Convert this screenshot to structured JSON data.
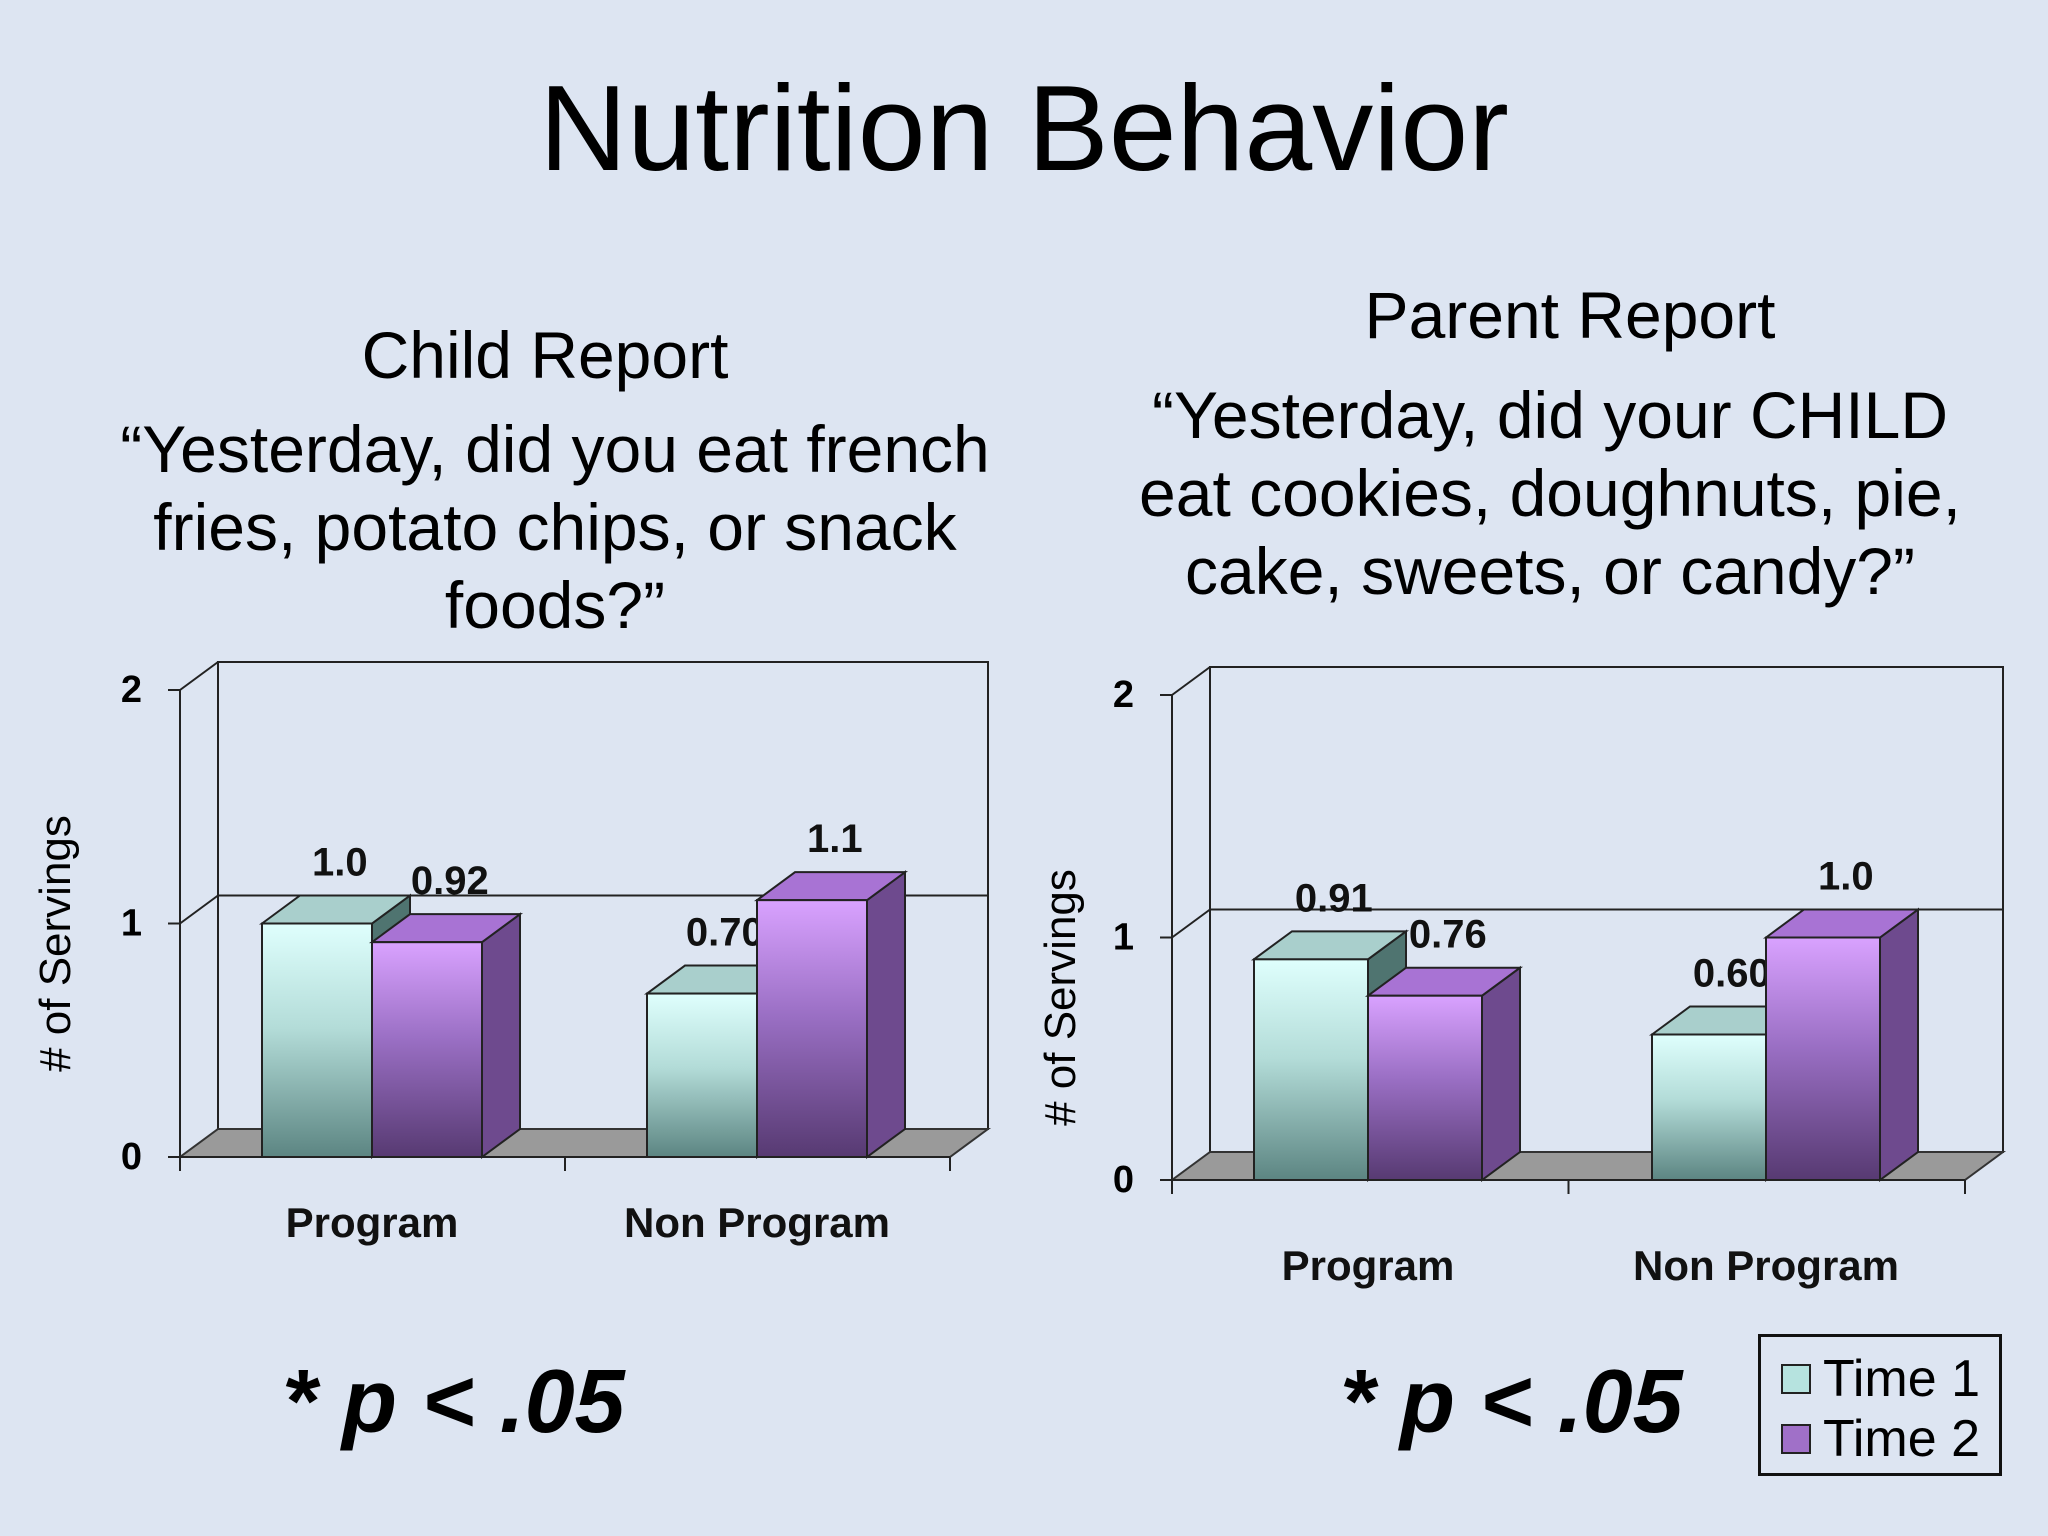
{
  "slide": {
    "title": "Nutrition Behavior",
    "p_value_label_left": "* p < .05",
    "p_value_label_right": "* p < .05"
  },
  "colors": {
    "background": "#dde5f2",
    "time1_light": "#d8fcfa",
    "time1_dark": "#5f8784",
    "time2_light": "#d39cf7",
    "time2_dark": "#5e3f78",
    "floor": "#9a9a9a"
  },
  "legend": {
    "items": [
      {
        "label": "Time 1",
        "color": "#b6e3df"
      },
      {
        "label": "Time 2",
        "color": "#a070c8"
      }
    ]
  },
  "child": {
    "report_title": "Child Report",
    "question_lines": [
      "“Yesterday, did you eat french",
      "fries, potato chips, or snack",
      "foods?”"
    ]
  },
  "parent": {
    "report_title": "Parent Report",
    "question_lines": [
      "“Yesterday, did your CHILD",
      "eat cookies, doughnuts, pie,",
      "cake, sweets, or candy?”"
    ]
  },
  "chart_data": [
    {
      "type": "bar",
      "ylabel": "# of Servings",
      "ylim": [
        0,
        2
      ],
      "yticks": [
        "0",
        "1",
        "2"
      ],
      "categories": [
        "Program",
        "Non Program"
      ],
      "series": [
        {
          "name": "Time 1",
          "values": [
            1.0,
            0.7
          ],
          "labels": [
            "1.0",
            "0.70"
          ]
        },
        {
          "name": "Time 2",
          "values": [
            0.92,
            1.1
          ],
          "labels": [
            "0.92",
            "1.1"
          ]
        }
      ],
      "gridline_at": 1,
      "legend": "bottom-right"
    },
    {
      "type": "bar",
      "ylabel": "# of Servings",
      "ylim": [
        0,
        2
      ],
      "yticks": [
        "0",
        "1",
        "2"
      ],
      "categories": [
        "Program",
        "Non Program"
      ],
      "series": [
        {
          "name": "Time 1",
          "values": [
            0.91,
            0.6
          ],
          "labels": [
            "0.91",
            "0.60"
          ]
        },
        {
          "name": "Time 2",
          "values": [
            0.76,
            1.0
          ],
          "labels": [
            "0.76",
            "1.0"
          ]
        }
      ],
      "gridline_at": 1,
      "legend": "bottom-right"
    }
  ]
}
